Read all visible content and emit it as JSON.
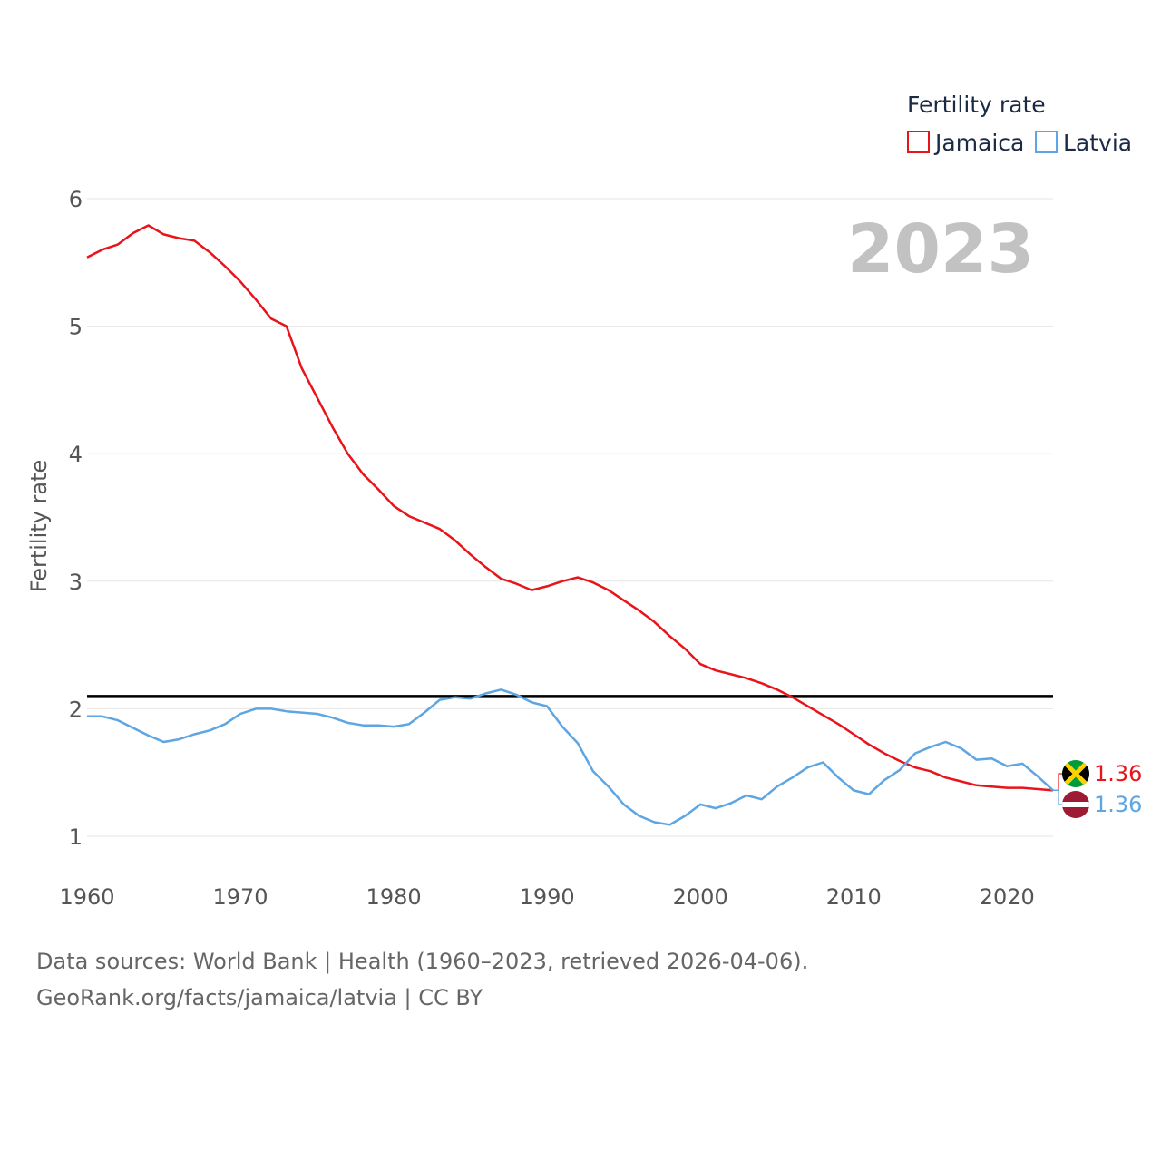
{
  "chart_data": {
    "type": "line",
    "title": "Fertility rate",
    "ylabel": "Fertility rate",
    "xlabel": "",
    "year_label": "2023",
    "xlim": [
      1960,
      2023
    ],
    "ylim": [
      1,
      6
    ],
    "x_ticks": [
      "1960",
      "1970",
      "1980",
      "1990",
      "2000",
      "2010",
      "2020"
    ],
    "y_ticks": [
      "1",
      "2",
      "3",
      "4",
      "5",
      "6"
    ],
    "reference_line": {
      "value": 2.1,
      "color": "#000000"
    },
    "x": [
      1960,
      1961,
      1962,
      1963,
      1964,
      1965,
      1966,
      1967,
      1968,
      1969,
      1970,
      1971,
      1972,
      1973,
      1974,
      1975,
      1976,
      1977,
      1978,
      1979,
      1980,
      1981,
      1982,
      1983,
      1984,
      1985,
      1986,
      1987,
      1988,
      1989,
      1990,
      1991,
      1992,
      1993,
      1994,
      1995,
      1996,
      1997,
      1998,
      1999,
      2000,
      2001,
      2002,
      2003,
      2004,
      2005,
      2006,
      2007,
      2008,
      2009,
      2010,
      2011,
      2012,
      2013,
      2014,
      2015,
      2016,
      2017,
      2018,
      2019,
      2020,
      2021,
      2022,
      2023
    ],
    "series": [
      {
        "name": "Jamaica",
        "color": "#e8141a",
        "end_label": "1.36",
        "flag": "jamaica-flag",
        "values": [
          5.54,
          5.6,
          5.64,
          5.73,
          5.79,
          5.72,
          5.69,
          5.67,
          5.58,
          5.47,
          5.35,
          5.21,
          5.06,
          5.0,
          4.67,
          4.44,
          4.21,
          4.0,
          3.84,
          3.72,
          3.59,
          3.51,
          3.46,
          3.41,
          3.32,
          3.21,
          3.11,
          3.02,
          2.98,
          2.93,
          2.96,
          3.0,
          3.03,
          2.99,
          2.93,
          2.85,
          2.77,
          2.68,
          2.57,
          2.47,
          2.35,
          2.3,
          2.27,
          2.24,
          2.2,
          2.15,
          2.09,
          2.02,
          1.95,
          1.88,
          1.8,
          1.72,
          1.65,
          1.59,
          1.54,
          1.51,
          1.46,
          1.43,
          1.4,
          1.39,
          1.38,
          1.38,
          1.37,
          1.36
        ]
      },
      {
        "name": "Latvia",
        "color": "#5da5e3",
        "end_label": "1.36",
        "flag": "latvia-flag",
        "values": [
          1.94,
          1.94,
          1.91,
          1.85,
          1.79,
          1.74,
          1.76,
          1.8,
          1.83,
          1.88,
          1.96,
          2.0,
          2.0,
          1.98,
          1.97,
          1.96,
          1.93,
          1.89,
          1.87,
          1.87,
          1.86,
          1.88,
          1.97,
          2.07,
          2.09,
          2.08,
          2.12,
          2.15,
          2.11,
          2.05,
          2.02,
          1.86,
          1.73,
          1.51,
          1.39,
          1.25,
          1.16,
          1.11,
          1.09,
          1.16,
          1.25,
          1.22,
          1.26,
          1.32,
          1.29,
          1.39,
          1.46,
          1.54,
          1.58,
          1.46,
          1.36,
          1.33,
          1.44,
          1.52,
          1.65,
          1.7,
          1.74,
          1.69,
          1.6,
          1.61,
          1.55,
          1.57,
          1.47,
          1.36
        ]
      }
    ]
  },
  "legend": {
    "title": "Fertility rate"
  },
  "sources": {
    "line1": "Data sources: World Bank | Health (1960–2023, retrieved 2026-04-06).",
    "line2": "GeoRank.org/facts/jamaica/latvia | CC BY"
  }
}
